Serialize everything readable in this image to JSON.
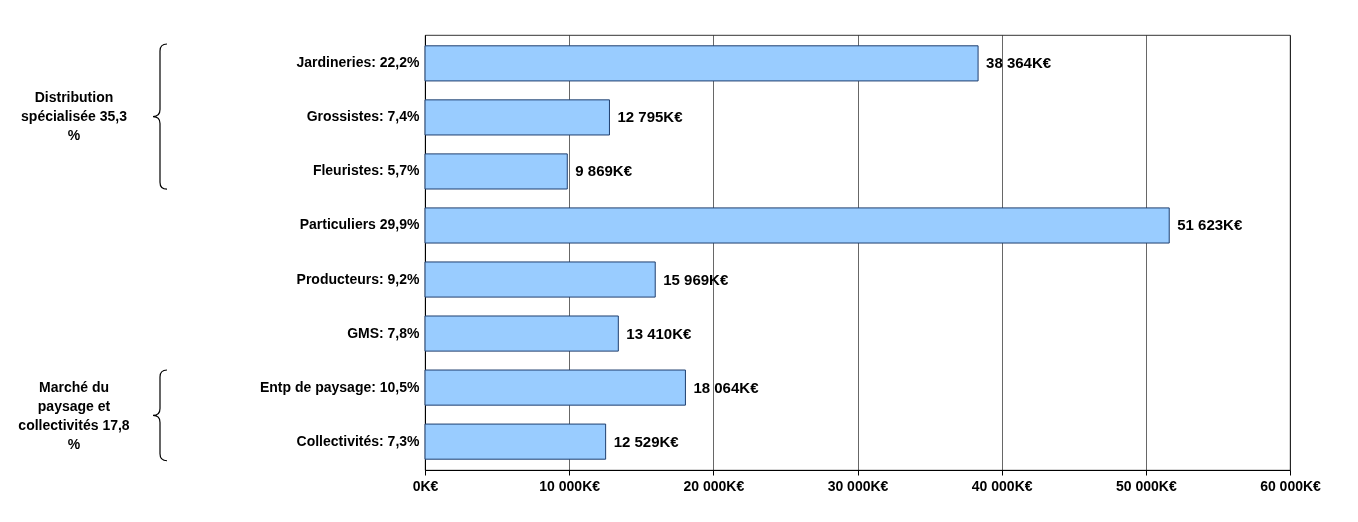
{
  "chart_data": {
    "type": "bar",
    "orientation": "horizontal",
    "categories": [
      "Jardineries: 22,2%",
      "Grossistes: 7,4%",
      "Fleuristes: 5,7%",
      "Particuliers 29,9%",
      "Producteurs: 9,2%",
      "GMS: 7,8%",
      "Entp de paysage: 10,5%",
      "Collectivités: 7,3%"
    ],
    "values": [
      38364,
      12795,
      9869,
      51623,
      15969,
      13410,
      18064,
      12529
    ],
    "value_labels": [
      "38 364K€",
      "12 795K€",
      "9 869K€",
      "51 623K€",
      "15 969K€",
      "13 410K€",
      "18 064K€",
      "12 529K€"
    ],
    "color": "#99ccff",
    "xlim": [
      0,
      60000
    ],
    "xticks": [
      {
        "value": 0,
        "label": "0K€"
      },
      {
        "value": 10000,
        "label": "10 000K€"
      },
      {
        "value": 20000,
        "label": "20 000K€"
      },
      {
        "value": 30000,
        "label": "30 000K€"
      },
      {
        "value": 40000,
        "label": "40 000K€"
      },
      {
        "value": 50000,
        "label": "50 000K€"
      },
      {
        "value": 60000,
        "label": "60 000K€"
      }
    ],
    "grid": "x",
    "annotations": [
      "Distribution spécialisée 35,3 %",
      "Marché du paysage et collectivités 17,8 %"
    ]
  }
}
